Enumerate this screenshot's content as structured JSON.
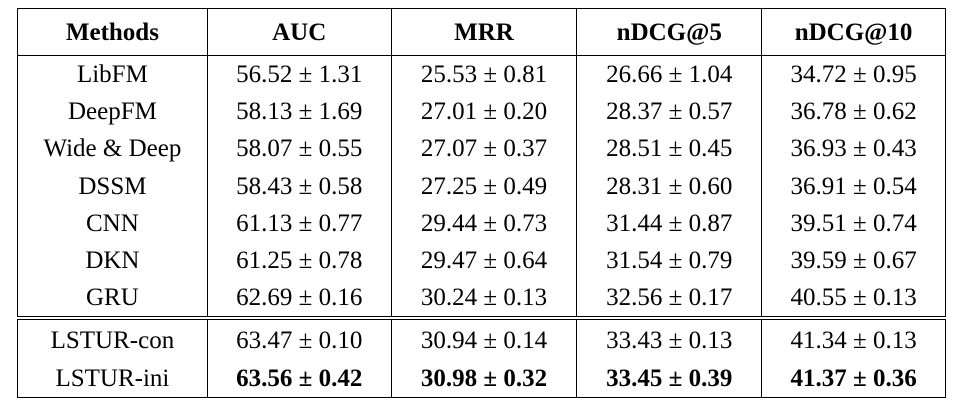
{
  "table": {
    "header": [
      "Methods",
      "AUC",
      "MRR",
      "nDCG@5",
      "nDCG@10"
    ],
    "rows": [
      [
        "LibFM",
        "56.52 ± 1.31",
        "25.53 ± 0.81",
        "26.66 ± 1.04",
        "34.72 ± 0.95"
      ],
      [
        "DeepFM",
        "58.13 ± 1.69",
        "27.01 ± 0.20",
        "28.37 ± 0.57",
        "36.78 ± 0.62"
      ],
      [
        "Wide & Deep",
        "58.07 ± 0.55",
        "27.07 ± 0.37",
        "28.51 ± 0.45",
        "36.93 ± 0.43"
      ],
      [
        "DSSM",
        "58.43 ± 0.58",
        "27.25 ± 0.49",
        "28.31 ± 0.60",
        "36.91 ± 0.54"
      ],
      [
        "CNN",
        "61.13 ± 0.77",
        "29.44 ± 0.73",
        "31.44 ± 0.87",
        "39.51 ± 0.74"
      ],
      [
        "DKN",
        "61.25 ± 0.78",
        "29.47 ± 0.64",
        "31.54 ± 0.79",
        "39.59 ± 0.67"
      ],
      [
        "GRU",
        "62.69 ± 0.16",
        "30.24 ± 0.13",
        "32.56 ± 0.17",
        "40.55 ± 0.13"
      ],
      [
        "LSTUR-con",
        "63.47 ± 0.10",
        "30.94 ± 0.14",
        "33.43 ± 0.13",
        "41.34 ± 0.13"
      ],
      [
        "LSTUR-ini",
        "63.56 ± 0.42",
        "30.98 ± 0.32",
        "33.45 ± 0.39",
        "41.37 ± 0.36"
      ]
    ]
  }
}
